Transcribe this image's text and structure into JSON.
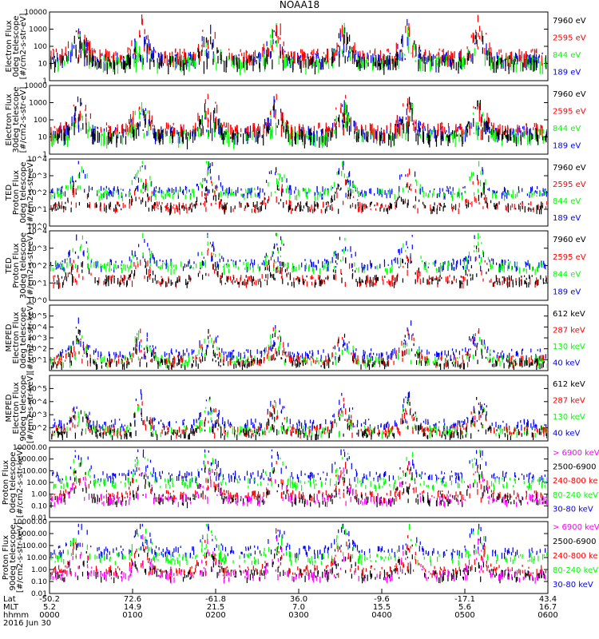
{
  "title": "NOAA18",
  "colors": {
    "black": "#000000",
    "red": "#ff0000",
    "green": "#00ff00",
    "blue": "#0000ff",
    "magenta": "#ff00ff"
  },
  "chart_data": [
    {
      "type": "scatter",
      "ylabel": [
        "Electron Flux",
        "0deg telescope",
        "[#/cm2-s-str-eV]"
      ],
      "yscale": "log",
      "ylim": [
        1,
        10000
      ],
      "ytick_labels": [
        "1",
        "10",
        "100",
        "1000",
        "10000"
      ],
      "legend": [
        {
          "label": "7960 eV",
          "color": "black"
        },
        {
          "label": "2595 eV",
          "color": "red"
        },
        {
          "label": "844 eV",
          "color": "green"
        },
        {
          "label": "189 eV",
          "color": "blue"
        }
      ]
    },
    {
      "type": "scatter",
      "ylabel": [
        "Electron Flux",
        "30deg telescope",
        "[#/cm2-s-str-eV]"
      ],
      "yscale": "log",
      "ylim": [
        1,
        10000
      ],
      "ytick_labels": [
        "1",
        "10",
        "100",
        "1000",
        "10000"
      ],
      "legend": [
        {
          "label": "7960 eV",
          "color": "black"
        },
        {
          "label": "2595 eV",
          "color": "red"
        },
        {
          "label": "844 eV",
          "color": "green"
        },
        {
          "label": "189 eV",
          "color": "blue"
        }
      ]
    },
    {
      "type": "scatter",
      "ylabel": [
        "TED",
        "Proton Flux",
        "0deg telescope",
        "[#/cm2-s-str-eV]"
      ],
      "yscale": "log",
      "ylim": [
        1,
        10000
      ],
      "ytick_labels": [
        "10^0",
        "10^1",
        "10^2",
        "10^3",
        "10^4"
      ],
      "legend": [
        {
          "label": "7960 eV",
          "color": "black"
        },
        {
          "label": "2595 eV",
          "color": "red"
        },
        {
          "label": "844 eV",
          "color": "green"
        },
        {
          "label": "189 eV",
          "color": "blue"
        }
      ]
    },
    {
      "type": "scatter",
      "ylabel": [
        "TED",
        "Proton Flux",
        "30deg telescope",
        "[#/cm2-s-str-eV]"
      ],
      "yscale": "log",
      "ylim": [
        1,
        10000
      ],
      "ytick_labels": [
        "10^0",
        "10^1",
        "10^2",
        "10^3",
        "10^4"
      ],
      "legend": [
        {
          "label": "7960 eV",
          "color": "black"
        },
        {
          "label": "2595 eV",
          "color": "red"
        },
        {
          "label": "844 eV",
          "color": "green"
        },
        {
          "label": "189 eV",
          "color": "blue"
        }
      ]
    },
    {
      "type": "scatter",
      "ylabel": [
        "MEPED",
        "Electron Flux",
        "0deg telescope",
        "[#/cm2-s-str-keV]"
      ],
      "yscale": "log",
      "ylim": [
        1,
        1000000
      ],
      "ytick_labels": [
        "10^1",
        "10^2",
        "10^3",
        "10^4",
        "10^5"
      ],
      "legend": [
        {
          "label": "612 keV",
          "color": "black"
        },
        {
          "label": "287 keV",
          "color": "red"
        },
        {
          "label": "130 keV",
          "color": "green"
        },
        {
          "label": "40 keV",
          "color": "blue"
        }
      ]
    },
    {
      "type": "scatter",
      "ylabel": [
        "MEPED",
        "Electron Flux",
        "90deg telescope",
        "[#/cm2-s-str-keV]"
      ],
      "yscale": "log",
      "ylim": [
        10,
        1000000
      ],
      "ytick_labels": [
        "10^2",
        "10^3",
        "10^4",
        "10^5"
      ],
      "legend": [
        {
          "label": "612 keV",
          "color": "black"
        },
        {
          "label": "287 keV",
          "color": "red"
        },
        {
          "label": "130 keV",
          "color": "green"
        },
        {
          "label": "40 keV",
          "color": "blue"
        }
      ]
    },
    {
      "type": "scatter",
      "ylabel": [
        "Proton Flux",
        "0deg telescope",
        "[#/cm2-s-str-keV]"
      ],
      "yscale": "log",
      "ylim": [
        0.01,
        10000
      ],
      "ytick_labels": [
        "0.01",
        "0.10",
        "1.00",
        "10.00",
        "100.00",
        "1000.00",
        "10000.00"
      ],
      "legend": [
        {
          "label": "> 6900 keV",
          "color": "magenta"
        },
        {
          "label": "2500-6900",
          "color": "black"
        },
        {
          "label": "240-800 ke",
          "color": "red"
        },
        {
          "label": "80-240 keV",
          "color": "green"
        },
        {
          "label": "30-80 keV",
          "color": "blue"
        }
      ]
    },
    {
      "type": "scatter",
      "ylabel": [
        "Proton Flux",
        "90deg telescope",
        "[#/cm2-s-str-keV]"
      ],
      "yscale": "log",
      "ylim": [
        0.01,
        10000
      ],
      "ytick_labels": [
        "0.01",
        "0.10",
        "1.00",
        "10.00",
        "100.00",
        "1000.00",
        "10000.00"
      ],
      "legend": [
        {
          "label": "> 6900 keV",
          "color": "magenta"
        },
        {
          "label": "2500-6900",
          "color": "black"
        },
        {
          "label": "240-800 ke",
          "color": "red"
        },
        {
          "label": "80-240 keV",
          "color": "green"
        },
        {
          "label": "30-80 keV",
          "color": "blue"
        }
      ]
    }
  ],
  "x_axis": {
    "row_labels": [
      "Lat",
      "MLT",
      "hhmm"
    ],
    "date": "2016 Jun 30",
    "lat": [
      "-50.2",
      "72.6",
      "-61.8",
      "36.0",
      "-9.6",
      "-17.1",
      "43.4"
    ],
    "mlt": [
      "5.2",
      "14.9",
      "21.5",
      "7.0",
      "15.5",
      "5.6",
      "16.7"
    ],
    "hhmm": [
      "0000",
      "0100",
      "0200",
      "0300",
      "0400",
      "0500",
      "0600"
    ]
  }
}
